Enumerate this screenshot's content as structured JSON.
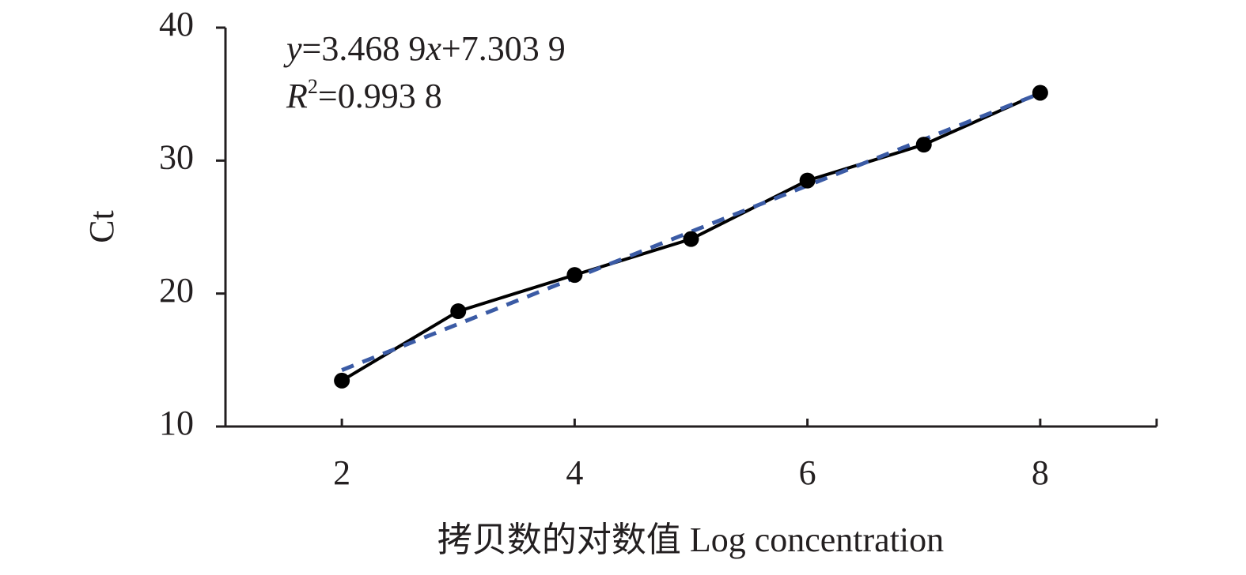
{
  "chart_data": {
    "type": "line",
    "xlabel": "拷贝数的对数值 Log concentration",
    "ylabel": "Ct",
    "equation": [
      "y",
      "=3.468 9",
      "x",
      "+7.303 9"
    ],
    "r_squared": [
      "R",
      "2",
      "=0.993 8"
    ],
    "x": [
      2,
      3,
      4,
      5,
      6,
      7,
      8
    ],
    "values": [
      13.45,
      18.67,
      21.4,
      24.1,
      28.5,
      31.2,
      35.1
    ],
    "color": "#000000",
    "trendline": {
      "x": [
        2,
        8
      ],
      "values": [
        14.24,
        35.06
      ],
      "color": "#3b5ba5"
    },
    "xlim": [
      1,
      9
    ],
    "xticks": [
      2,
      4,
      6,
      8
    ],
    "ylim": [
      10,
      40
    ],
    "yticks": [
      10,
      20,
      30,
      40
    ],
    "grid": false
  }
}
